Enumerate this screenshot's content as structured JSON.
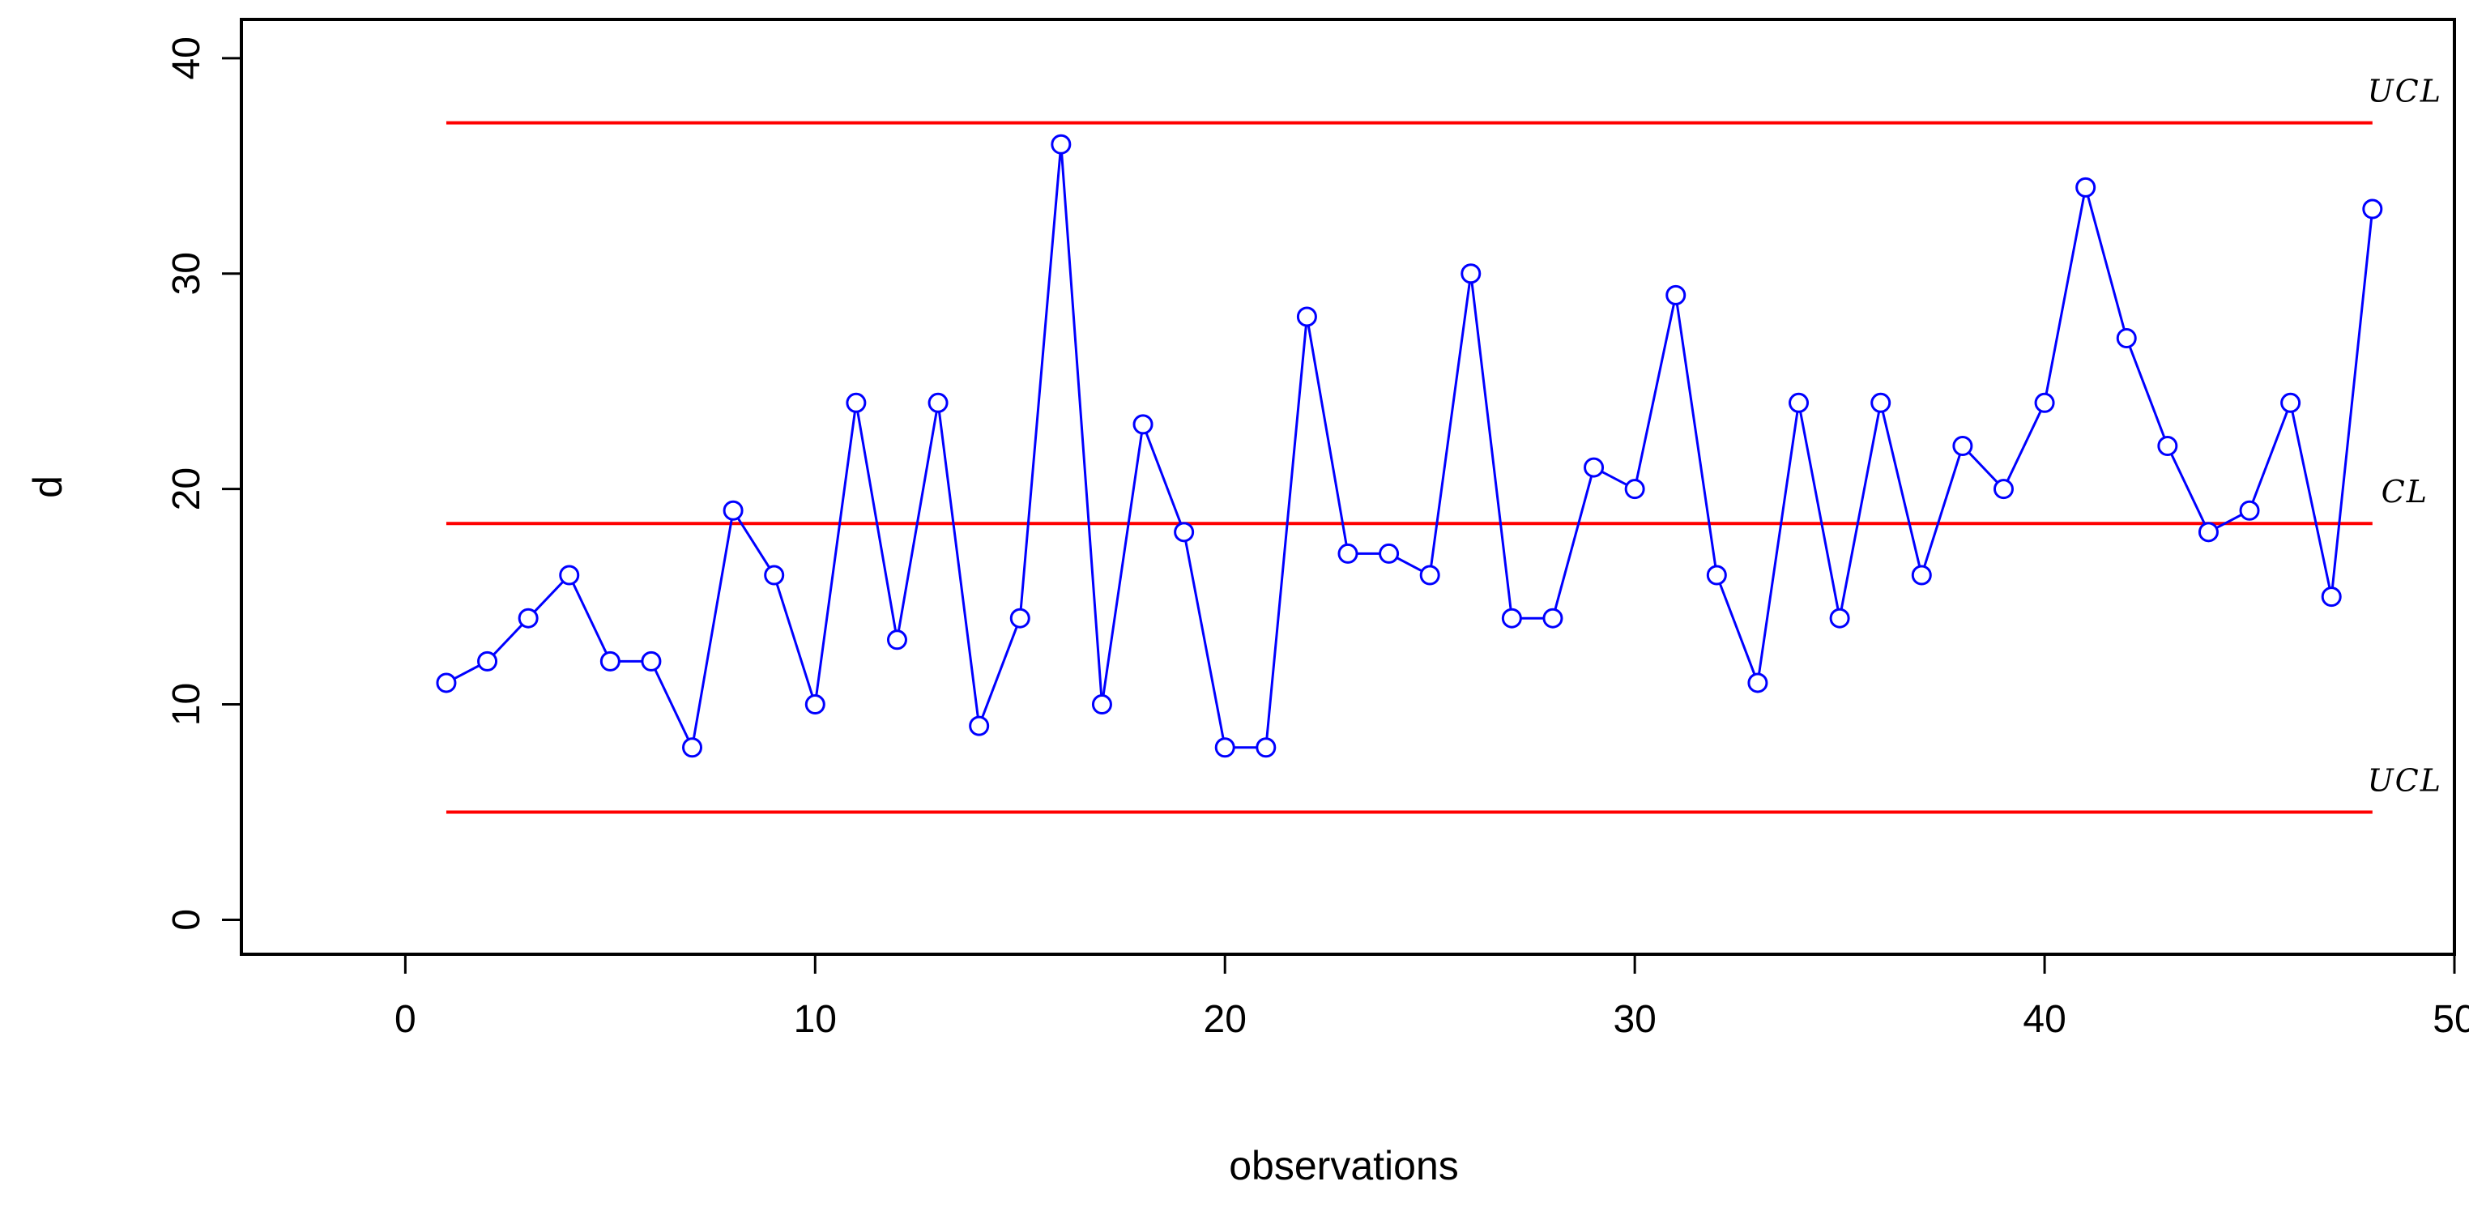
{
  "chart_data": {
    "type": "line",
    "xlabel": "observations",
    "ylabel": "d",
    "xlim": [
      -4,
      50
    ],
    "ylim": [
      -1.6,
      41.8
    ],
    "x_ticks": [
      0,
      10,
      20,
      30,
      40,
      50
    ],
    "y_ticks": [
      0,
      10,
      20,
      30,
      40
    ],
    "series": [
      {
        "color": "#0000ff",
        "marker": "circle",
        "x": [
          1,
          2,
          3,
          4,
          5,
          6,
          7,
          8,
          9,
          10,
          11,
          12,
          13,
          14,
          15,
          16,
          17,
          18,
          19,
          20,
          21,
          22,
          23,
          24,
          25,
          26,
          27,
          28,
          29,
          30,
          31,
          32,
          33,
          34,
          35,
          36,
          37,
          38,
          39,
          40,
          41,
          42,
          43,
          44,
          45,
          46,
          47,
          48
        ],
        "values": [
          11,
          12,
          14,
          16,
          12,
          12,
          8,
          19,
          16,
          10,
          24,
          13,
          24,
          9,
          14,
          36,
          10,
          23,
          18,
          8,
          8,
          28,
          17,
          17,
          16,
          30,
          14,
          14,
          21,
          20,
          29,
          16,
          11,
          24,
          14,
          24,
          16,
          22,
          20,
          24,
          34,
          27,
          22,
          18,
          19,
          24,
          15,
          33
        ]
      }
    ],
    "control_lines": [
      {
        "label": "UCL",
        "value": 37,
        "x_range": [
          1,
          48
        ],
        "color": "#ff0000"
      },
      {
        "label": "CL",
        "value": 18.4,
        "x_range": [
          1,
          48
        ],
        "color": "#ff0000"
      },
      {
        "label": "UCL",
        "value": 5,
        "x_range": [
          1,
          48
        ],
        "color": "#ff0000"
      }
    ],
    "grid": false,
    "legend": "none"
  }
}
